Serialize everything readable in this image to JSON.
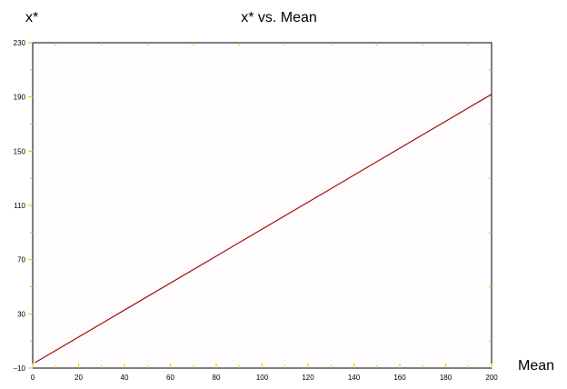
{
  "chart_data": {
    "type": "line",
    "title": "x* vs. Mean",
    "xlabel": "Mean",
    "ylabel": "x*",
    "xlim": [
      0,
      200
    ],
    "ylim": [
      -10,
      230
    ],
    "x_ticks": [
      0,
      20,
      40,
      60,
      80,
      100,
      120,
      140,
      160,
      180,
      200
    ],
    "y_ticks": [
      -10,
      30,
      70,
      110,
      150,
      190,
      230
    ],
    "x_tick_labels": [
      "0",
      "20",
      "40",
      "60",
      "80",
      "100",
      "120",
      "140",
      "160",
      "180",
      "200"
    ],
    "y_tick_labels": [
      "–10",
      "30",
      "70",
      "110",
      "150",
      "190",
      "230"
    ],
    "grid": false,
    "series": [
      {
        "x": [
          1,
          200
        ],
        "y": [
          -6,
          192
        ]
      }
    ],
    "colors": {
      "line": "#a01010",
      "plot_background": "#fefcfc",
      "minor_tick": "#e8c200",
      "axis": "#000000"
    }
  }
}
